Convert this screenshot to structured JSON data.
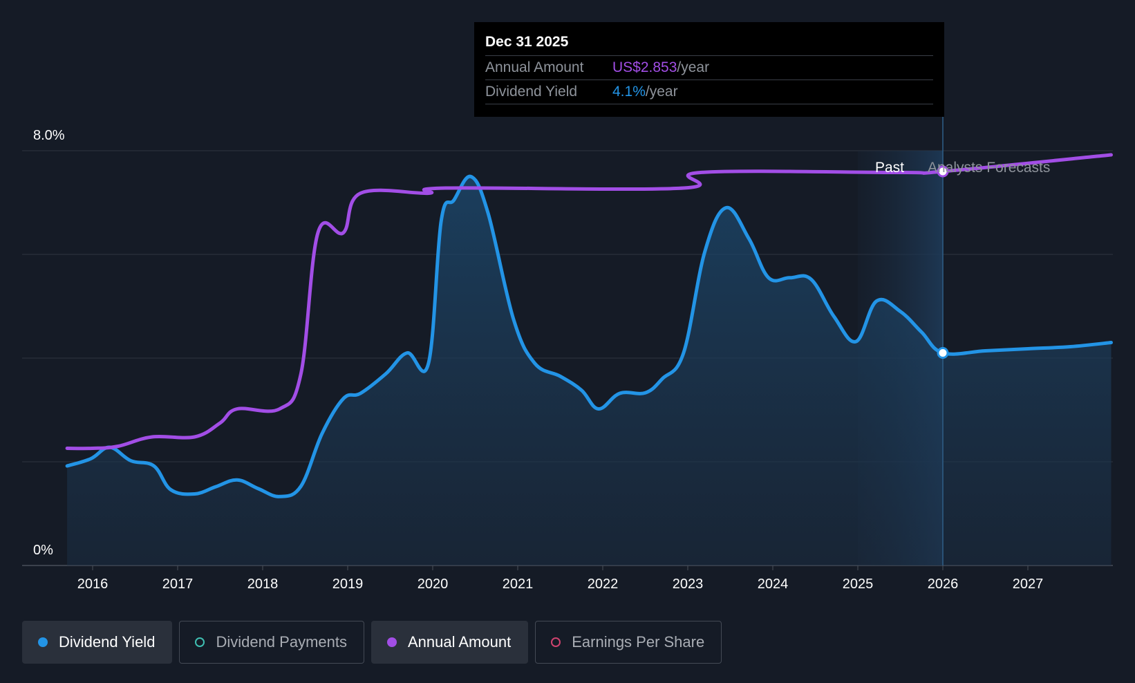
{
  "chart_data": {
    "type": "line",
    "y_axis": {
      "min_label": "0%",
      "max_label": "8.0%",
      "ylim": [
        0,
        8
      ]
    },
    "x_ticks": [
      "2016",
      "2017",
      "2018",
      "2019",
      "2020",
      "2021",
      "2022",
      "2023",
      "2024",
      "2025",
      "2026",
      "2027"
    ],
    "region_labels": {
      "past": "Past",
      "forecast": "Analysts Forecasts"
    },
    "series": [
      {
        "name": "Dividend Yield",
        "color": "#2394e6",
        "unit": "percent",
        "points": [
          [
            2015.7,
            1.92
          ],
          [
            2015.98,
            2.06
          ],
          [
            2016.2,
            2.28
          ],
          [
            2016.45,
            2.02
          ],
          [
            2016.72,
            1.92
          ],
          [
            2016.92,
            1.46
          ],
          [
            2017.2,
            1.38
          ],
          [
            2017.45,
            1.52
          ],
          [
            2017.7,
            1.65
          ],
          [
            2017.95,
            1.48
          ],
          [
            2018.2,
            1.33
          ],
          [
            2018.45,
            1.53
          ],
          [
            2018.7,
            2.55
          ],
          [
            2018.95,
            3.22
          ],
          [
            2019.15,
            3.32
          ],
          [
            2019.45,
            3.7
          ],
          [
            2019.7,
            4.1
          ],
          [
            2019.95,
            3.9
          ],
          [
            2020.1,
            6.65
          ],
          [
            2020.25,
            7.05
          ],
          [
            2020.45,
            7.5
          ],
          [
            2020.65,
            6.8
          ],
          [
            2020.95,
            4.75
          ],
          [
            2021.2,
            3.9
          ],
          [
            2021.5,
            3.65
          ],
          [
            2021.75,
            3.38
          ],
          [
            2021.95,
            3.02
          ],
          [
            2022.2,
            3.32
          ],
          [
            2022.5,
            3.33
          ],
          [
            2022.7,
            3.6
          ],
          [
            2022.95,
            4.1
          ],
          [
            2023.2,
            6.05
          ],
          [
            2023.45,
            6.9
          ],
          [
            2023.72,
            6.3
          ],
          [
            2023.95,
            5.55
          ],
          [
            2024.2,
            5.55
          ],
          [
            2024.45,
            5.52
          ],
          [
            2024.72,
            4.8
          ],
          [
            2024.98,
            4.32
          ],
          [
            2025.22,
            5.1
          ],
          [
            2025.5,
            4.9
          ],
          [
            2025.75,
            4.5
          ],
          [
            2026.0,
            4.1
          ],
          [
            2026.5,
            4.14
          ],
          [
            2027.0,
            4.18
          ],
          [
            2027.5,
            4.22
          ],
          [
            2027.98,
            4.3
          ]
        ]
      },
      {
        "name": "Annual Amount",
        "color": "#a24ee6",
        "unit": "scaled to yield axis",
        "points": [
          [
            2015.7,
            2.26
          ],
          [
            2016.0,
            2.26
          ],
          [
            2016.3,
            2.3
          ],
          [
            2016.7,
            2.48
          ],
          [
            2017.2,
            2.48
          ],
          [
            2017.5,
            2.75
          ],
          [
            2017.7,
            3.02
          ],
          [
            2018.2,
            3.02
          ],
          [
            2018.45,
            3.7
          ],
          [
            2018.65,
            6.42
          ],
          [
            2018.95,
            6.42
          ],
          [
            2019.15,
            7.18
          ],
          [
            2019.95,
            7.18
          ],
          [
            2020.15,
            7.28
          ],
          [
            2022.95,
            7.28
          ],
          [
            2023.15,
            7.58
          ],
          [
            2025.5,
            7.58
          ],
          [
            2026.0,
            7.6
          ],
          [
            2027.98,
            7.92
          ]
        ]
      }
    ],
    "tooltip": {
      "date": "Dec 31 2025",
      "rows": [
        {
          "label": "Annual Amount",
          "value": "US$2.853",
          "unit": "/year",
          "color": "#a24ee6"
        },
        {
          "label": "Dividend Yield",
          "value": "4.1%",
          "unit": "/year",
          "color": "#2394e6"
        }
      ]
    }
  },
  "legend": {
    "items": [
      {
        "label": "Dividend Yield",
        "dot_color": "#2394e6",
        "active": true,
        "filled": true
      },
      {
        "label": "Dividend Payments",
        "dot_color": "#3fbfb2",
        "active": false,
        "filled": false
      },
      {
        "label": "Annual Amount",
        "dot_color": "#a24ee6",
        "active": true,
        "filled": true
      },
      {
        "label": "Earnings Per Share",
        "dot_color": "#d0436f",
        "active": false,
        "filled": false
      }
    ]
  }
}
